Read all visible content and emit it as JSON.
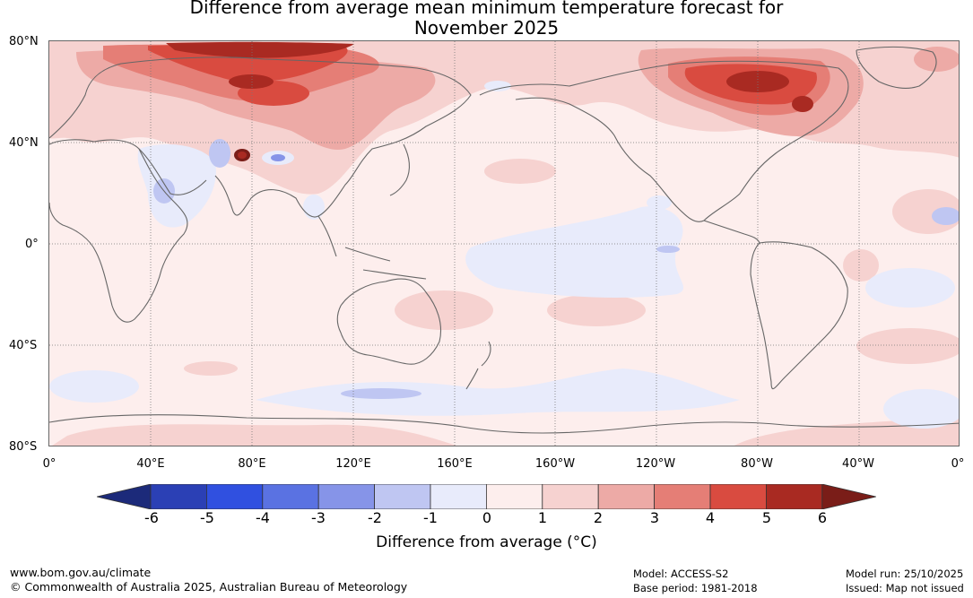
{
  "title_line1": "Difference from average mean minimum temperature forecast for",
  "title_line2": "November 2025",
  "lat_labels": [
    "80°N",
    "40°N",
    "0°",
    "40°S",
    "80°S"
  ],
  "lon_labels": [
    "0°",
    "40°E",
    "80°E",
    "120°E",
    "160°E",
    "160°W",
    "120°W",
    "80°W",
    "40°W",
    "0°"
  ],
  "colorbar": {
    "ticks": [
      "-6",
      "-5",
      "-4",
      "-3",
      "-2",
      "-1",
      "0",
      "1",
      "2",
      "3",
      "4",
      "5",
      "6"
    ],
    "colors": [
      "#1c2a7a",
      "#2b40b5",
      "#3050e0",
      "#5a72e2",
      "#8694e8",
      "#bfc6f2",
      "#e8ebfb",
      "#fdeeed",
      "#f6d2d0",
      "#edaaa6",
      "#e57e76",
      "#d94b40",
      "#a92a22",
      "#7a1d18"
    ],
    "title": "Difference from average (°C)"
  },
  "footer": {
    "website": "www.bom.gov.au/climate",
    "copyright": "© Commonwealth of Australia 2025, Australian Bureau of Meteorology",
    "model": "Model: ACCESS-S2",
    "base_period": "Base period: 1981-2018",
    "model_run": "Model run: 25/10/2025",
    "issued": "Issued: Map not issued"
  }
}
